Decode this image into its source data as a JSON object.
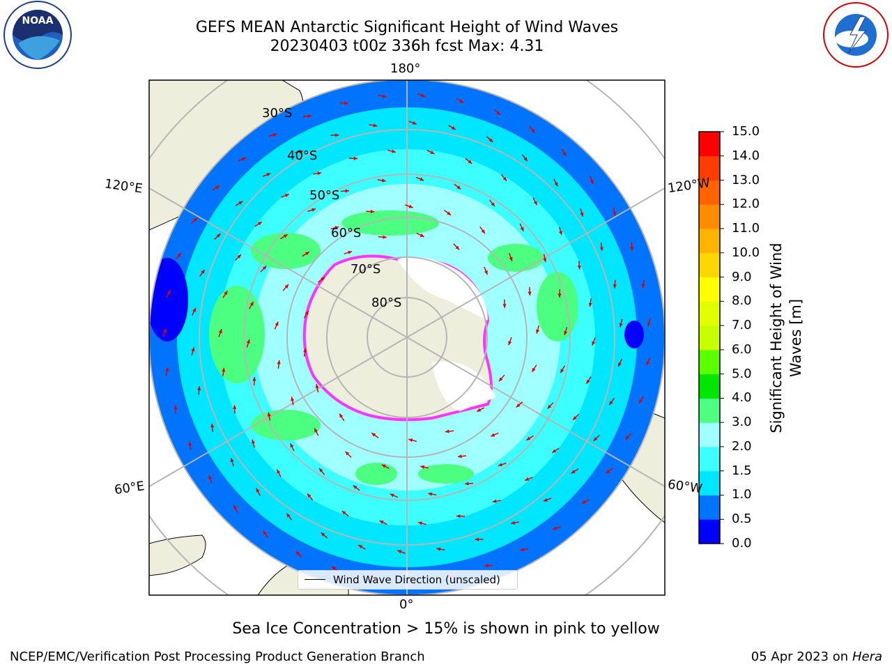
{
  "title": {
    "line1": "GEFS MEAN Antarctic Significant Height of Wind Waves",
    "line2": "20230403 t00z 336h fcst   Max: 4.31"
  },
  "logos": {
    "noaa": "NOAA",
    "nws": "NATIONAL WEATHER SERVICE"
  },
  "map": {
    "longitude_labels": [
      "180°",
      "120°E",
      "120°W",
      "60°E",
      "60°W",
      "0°"
    ],
    "latitude_labels": [
      "30°S",
      "40°S",
      "50°S",
      "60°S",
      "70°S",
      "80°S"
    ],
    "legend_label": "Wind Wave Direction (unscaled)"
  },
  "colorbar": {
    "title": "Significant Height of Wind Waves [m]",
    "ticks": [
      "15.0",
      "14.0",
      "13.0",
      "12.0",
      "11.0",
      "10.0",
      "9.0",
      "8.0",
      "7.0",
      "6.0",
      "5.0",
      "4.0",
      "3.0",
      "2.0",
      "1.5",
      "1.0",
      "0.5",
      "0.0"
    ],
    "colors": [
      "#0000ff",
      "#0073ff",
      "#00e6ff",
      "#3dffff",
      "#a0ffff",
      "#4dff80",
      "#00e600",
      "#5cff00",
      "#c8ff00",
      "#e0ff00",
      "#ffff00",
      "#ffd700",
      "#ffb400",
      "#ff8c00",
      "#ff6400",
      "#ff3c00",
      "#ff0000"
    ]
  },
  "footer": {
    "note": "Sea Ice Concentration > 15% is shown in pink to yellow",
    "left": "NCEP/EMC/Verification Post Processing Product Generation Branch",
    "right_date": "05 Apr 2023 on ",
    "right_host": "Hera"
  }
}
